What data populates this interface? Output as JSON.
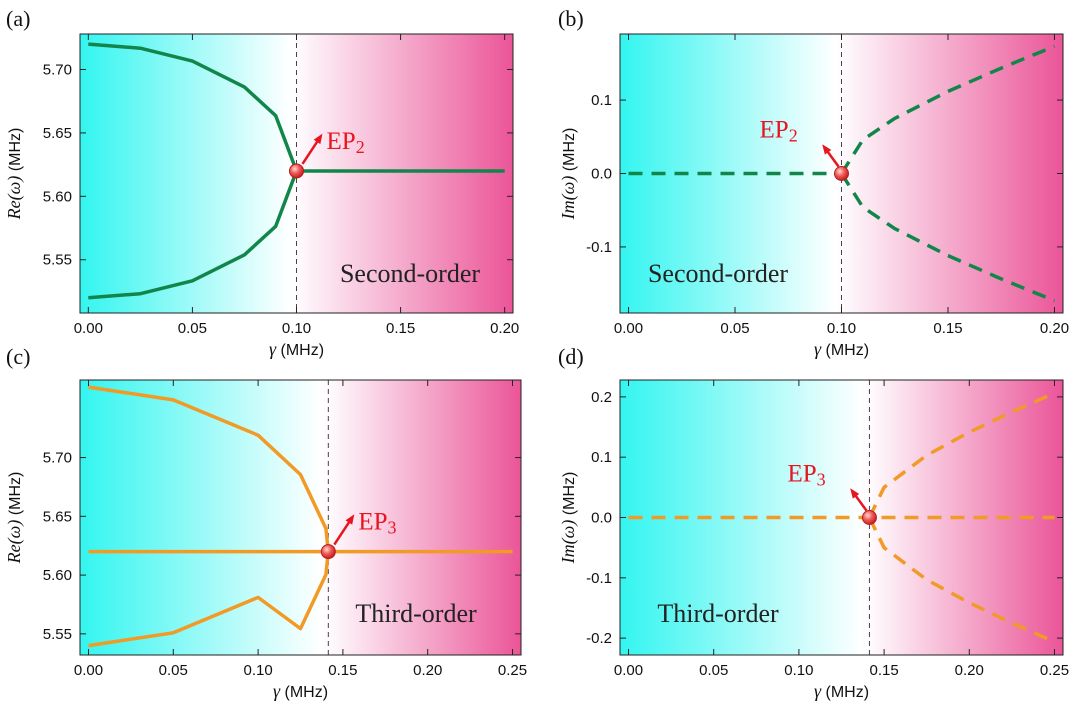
{
  "chart_data": [
    {
      "panel": "(a)",
      "type": "line",
      "xlabel": "γ (MHz)",
      "ylabel": "Re(ω) (MHz)",
      "xlim": [
        -0.004,
        0.204
      ],
      "ylim": [
        5.508,
        5.728
      ],
      "xticks": [
        "0.00",
        "0.05",
        "0.10",
        "0.15",
        "0.20"
      ],
      "yticks": [
        "5.55",
        "5.60",
        "5.65",
        "5.70"
      ],
      "annotation": "Second-order",
      "ep": {
        "label": "EP",
        "subscript": "2",
        "x": 0.1,
        "y": 5.62
      },
      "threshold": 0.1,
      "line_style": "solid",
      "color": "#12864a",
      "series": [
        {
          "kind": "upper-branch",
          "values": [
            [
              0.0,
              5.72
            ],
            [
              0.025,
              5.7168
            ],
            [
              0.05,
              5.7066
            ],
            [
              0.075,
              5.6861
            ],
            [
              0.09,
              5.6636
            ],
            [
              0.1,
              5.62
            ]
          ]
        },
        {
          "kind": "lower-branch",
          "values": [
            [
              0.0,
              5.52
            ],
            [
              0.025,
              5.5232
            ],
            [
              0.05,
              5.5334
            ],
            [
              0.075,
              5.5539
            ],
            [
              0.09,
              5.5764
            ],
            [
              0.1,
              5.62
            ]
          ]
        },
        {
          "kind": "merged",
          "values": [
            [
              0.1,
              5.62
            ],
            [
              0.2,
              5.62
            ]
          ]
        }
      ]
    },
    {
      "panel": "(b)",
      "type": "line",
      "xlabel": "γ (MHz)",
      "ylabel": "Im(ω) (MHz)",
      "xlim": [
        -0.004,
        0.204
      ],
      "ylim": [
        -0.19,
        0.19
      ],
      "xticks": [
        "0.00",
        "0.05",
        "0.10",
        "0.15",
        "0.20"
      ],
      "yticks": [
        "-0.1",
        "0.0",
        "0.1"
      ],
      "annotation": "Second-order",
      "ep": {
        "label": "EP",
        "subscript": "2",
        "x": 0.1,
        "y": 0.0
      },
      "threshold": 0.1,
      "line_style": "dashed",
      "color": "#12864a",
      "series": [
        {
          "kind": "zero",
          "values": [
            [
              0.0,
              0.0
            ],
            [
              0.1,
              0.0
            ]
          ]
        },
        {
          "kind": "upper-branch",
          "values": [
            [
              0.1,
              0.0
            ],
            [
              0.11,
              0.0458
            ],
            [
              0.125,
              0.075
            ],
            [
              0.15,
              0.1118
            ],
            [
              0.175,
              0.1436
            ],
            [
              0.2,
              0.1732
            ]
          ]
        },
        {
          "kind": "lower-branch",
          "values": [
            [
              0.1,
              0.0
            ],
            [
              0.11,
              -0.0458
            ],
            [
              0.125,
              -0.075
            ],
            [
              0.15,
              -0.1118
            ],
            [
              0.175,
              -0.1436
            ],
            [
              0.2,
              -0.1732
            ]
          ]
        }
      ]
    },
    {
      "panel": "(c)",
      "type": "line",
      "xlabel": "γ (MHz)",
      "ylabel": "Re(ω) (MHz)",
      "xlim": [
        -0.005,
        0.255
      ],
      "ylim": [
        5.532,
        5.766
      ],
      "xticks": [
        "0.00",
        "0.05",
        "0.10",
        "0.15",
        "0.20",
        "0.25"
      ],
      "yticks": [
        "5.55",
        "5.60",
        "5.65",
        "5.70"
      ],
      "annotation": "Third-order",
      "ep": {
        "label": "EP",
        "subscript": "3",
        "x": 0.1414,
        "y": 5.62
      },
      "threshold": 0.1414,
      "line_style": "solid",
      "color": "#f19a25",
      "series": [
        {
          "kind": "upper-branch",
          "values": [
            [
              0.0,
              5.76
            ],
            [
              0.05,
              5.7491
            ],
            [
              0.1,
              5.719
            ],
            [
              0.125,
              5.6855
            ],
            [
              0.14,
              5.6396
            ],
            [
              0.1414,
              5.62
            ]
          ]
        },
        {
          "kind": "lower-branch",
          "values": [
            [
              0.0,
              5.54
            ],
            [
              0.05,
              5.5509
            ],
            [
              0.1,
              5.581
            ],
            [
              0.125,
              5.5545
            ],
            [
              0.14,
              5.6004
            ],
            [
              0.1414,
              5.62
            ]
          ]
        },
        {
          "kind": "flat",
          "values": [
            [
              0.0,
              5.62
            ],
            [
              0.25,
              5.62
            ]
          ]
        }
      ]
    },
    {
      "panel": "(d)",
      "type": "line",
      "xlabel": "γ (MHz)",
      "ylabel": "Im(ω) (MHz)",
      "xlim": [
        -0.005,
        0.255
      ],
      "ylim": [
        -0.228,
        0.228
      ],
      "xticks": [
        "0.00",
        "0.05",
        "0.10",
        "0.15",
        "0.20",
        "0.25"
      ],
      "yticks": [
        "-0.2",
        "-0.1",
        "0.0",
        "0.1",
        "0.2"
      ],
      "annotation": "Third-order",
      "ep": {
        "label": "EP",
        "subscript": "3",
        "x": 0.1414,
        "y": 0.0
      },
      "threshold": 0.1414,
      "line_style": "dashed",
      "color": "#f19a25",
      "series": [
        {
          "kind": "zero",
          "values": [
            [
              0.0,
              0.0
            ],
            [
              0.25,
              0.0
            ]
          ]
        },
        {
          "kind": "upper-branch",
          "values": [
            [
              0.1414,
              0.0
            ],
            [
              0.15,
              0.05
            ],
            [
              0.175,
              0.1031
            ],
            [
              0.2,
              0.1414
            ],
            [
              0.225,
              0.175
            ],
            [
              0.25,
              0.2062
            ]
          ]
        },
        {
          "kind": "lower-branch",
          "values": [
            [
              0.1414,
              0.0
            ],
            [
              0.15,
              -0.05
            ],
            [
              0.175,
              -0.1031
            ],
            [
              0.2,
              -0.1414
            ],
            [
              0.225,
              -0.175
            ],
            [
              0.25,
              -0.2062
            ]
          ]
        }
      ]
    }
  ],
  "colors": {
    "cyan": "#33f5f0",
    "magenta": "#eb5598",
    "ep_red": "#e8141e",
    "ep_marker": "#f05a58"
  }
}
